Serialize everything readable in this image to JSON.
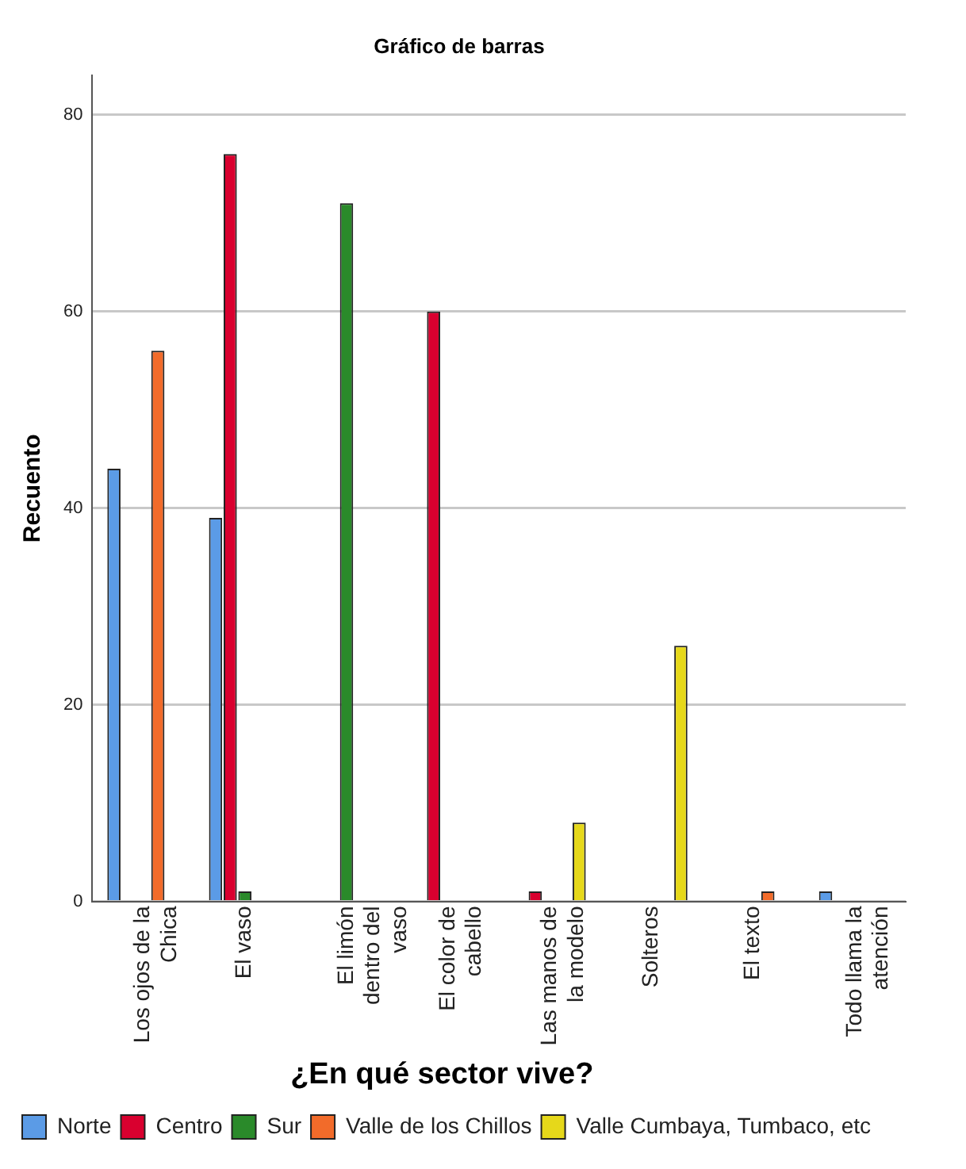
{
  "chart_data": {
    "type": "bar",
    "title": "Gráfico de barras",
    "ylabel": "Recuento",
    "legend_title": "¿En qué sector vive?",
    "categories": [
      "Los ojos de la Chica",
      "El vaso",
      "El limón dentro del vaso",
      "El color de cabello",
      "Las manos de la modelo",
      "Solteros",
      "El texto",
      "Todo llama la atención"
    ],
    "series": [
      {
        "name": "Norte",
        "color": "#5b9be6",
        "values": [
          44,
          39,
          null,
          null,
          null,
          null,
          null,
          1
        ]
      },
      {
        "name": "Centro",
        "color": "#d9002f",
        "values": [
          null,
          76,
          null,
          60,
          1,
          null,
          null,
          null
        ]
      },
      {
        "name": "Sur",
        "color": "#2a8a2a",
        "values": [
          null,
          1,
          71,
          null,
          null,
          null,
          null,
          null
        ]
      },
      {
        "name": "Valle de los Chillos",
        "color": "#f26b2a",
        "values": [
          56,
          null,
          null,
          null,
          null,
          null,
          1,
          null
        ]
      },
      {
        "name": "Valle Cumbaya, Tumbaco, etc",
        "color": "#e6d81a",
        "values": [
          null,
          null,
          null,
          null,
          8,
          26,
          null,
          null
        ]
      }
    ],
    "ylim": [
      0,
      84
    ],
    "yticks": [
      0,
      20,
      40,
      60,
      80
    ],
    "grid": "y",
    "legend": "bottom"
  }
}
